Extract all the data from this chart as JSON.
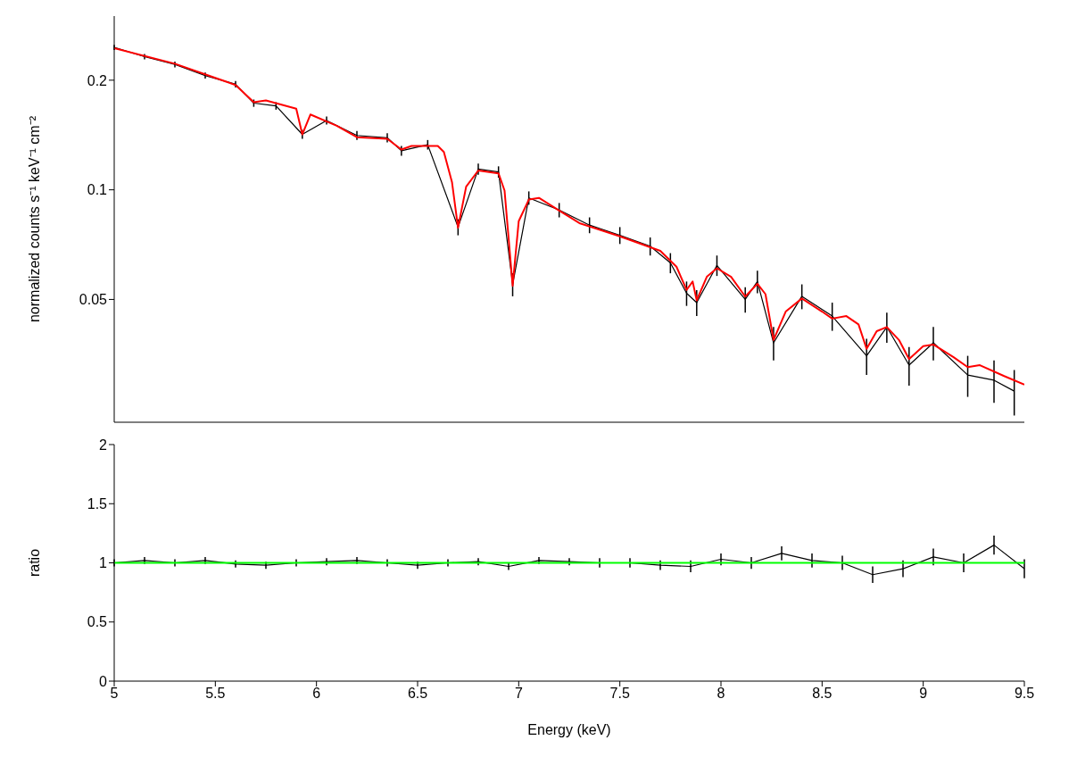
{
  "chart_data": [
    {
      "type": "line",
      "ylabel": "normalized counts s⁻¹ keV⁻¹ cm⁻²",
      "log": "y",
      "tick_labels": "y",
      "xlim": [
        5,
        9.5
      ],
      "xticks": [
        5,
        5.5,
        6,
        6.5,
        7,
        7.5,
        8,
        8.5,
        9,
        9.5
      ],
      "ylim": [
        0.023,
        0.3
      ],
      "yticks": [
        0.05,
        0.1,
        0.2
      ],
      "series": [
        {
          "color": "#000000",
          "x": [
            5.0,
            5.15,
            5.3,
            5.45,
            5.6,
            5.69,
            5.8,
            5.93,
            6.05,
            6.2,
            6.35,
            6.42,
            6.55,
            6.7,
            6.8,
            6.9,
            6.97,
            7.05,
            7.2,
            7.35,
            7.5,
            7.65,
            7.75,
            7.83,
            7.88,
            7.98,
            8.12,
            8.18,
            8.26,
            8.4,
            8.55,
            8.72,
            8.82,
            8.93,
            9.05,
            9.22,
            9.35,
            9.45
          ],
          "values": [
            0.246,
            0.232,
            0.221,
            0.206,
            0.195,
            0.173,
            0.17,
            0.142,
            0.155,
            0.141,
            0.139,
            0.128,
            0.133,
            0.079,
            0.114,
            0.112,
            0.055,
            0.095,
            0.088,
            0.08,
            0.075,
            0.07,
            0.063,
            0.052,
            0.049,
            0.062,
            0.05,
            0.056,
            0.038,
            0.051,
            0.045,
            0.035,
            0.042,
            0.033,
            0.038,
            0.031,
            0.03,
            0.028
          ],
          "errors": [
            0.004,
            0.004,
            0.004,
            0.004,
            0.004,
            0.004,
            0.004,
            0.004,
            0.004,
            0.004,
            0.004,
            0.004,
            0.004,
            0.004,
            0.004,
            0.004,
            0.004,
            0.004,
            0.004,
            0.004,
            0.004,
            0.004,
            0.004,
            0.004,
            0.004,
            0.004,
            0.004,
            0.004,
            0.004,
            0.004,
            0.004,
            0.004,
            0.004,
            0.004,
            0.004,
            0.004,
            0.004,
            0.004
          ]
        },
        {
          "color": "#ff0000",
          "x": [
            5.0,
            5.3,
            5.6,
            5.69,
            5.75,
            5.9,
            5.93,
            5.97,
            6.1,
            6.2,
            6.35,
            6.42,
            6.47,
            6.6,
            6.63,
            6.67,
            6.7,
            6.74,
            6.8,
            6.9,
            6.93,
            6.97,
            7.0,
            7.05,
            7.1,
            7.2,
            7.3,
            7.5,
            7.7,
            7.78,
            7.83,
            7.86,
            7.88,
            7.93,
            7.98,
            8.05,
            8.12,
            8.18,
            8.22,
            8.26,
            8.32,
            8.4,
            8.5,
            8.55,
            8.62,
            8.68,
            8.72,
            8.77,
            8.82,
            8.88,
            8.93,
            9.0,
            9.05,
            9.15,
            9.22,
            9.28,
            9.4,
            9.5
          ],
          "values": [
            0.245,
            0.222,
            0.194,
            0.174,
            0.176,
            0.167,
            0.142,
            0.161,
            0.15,
            0.1395,
            0.138,
            0.129,
            0.132,
            0.132,
            0.127,
            0.105,
            0.0787,
            0.102,
            0.113,
            0.111,
            0.0995,
            0.0545,
            0.082,
            0.094,
            0.095,
            0.0877,
            0.081,
            0.0745,
            0.068,
            0.0615,
            0.0531,
            0.056,
            0.0497,
            0.0577,
            0.0609,
            0.0577,
            0.0509,
            0.0552,
            0.0517,
            0.0387,
            0.0463,
            0.0503,
            0.0463,
            0.0443,
            0.045,
            0.0427,
            0.0366,
            0.0409,
            0.042,
            0.0387,
            0.0343,
            0.0372,
            0.0376,
            0.0347,
            0.0326,
            0.033,
            0.0308,
            0.0292
          ]
        }
      ]
    },
    {
      "type": "line",
      "ylabel": "ratio",
      "xlabel": "Energy (keV)",
      "xlim": [
        5,
        9.5
      ],
      "xticks": [
        5,
        5.5,
        6,
        6.5,
        7,
        7.5,
        8,
        8.5,
        9,
        9.5
      ],
      "ylim": [
        0,
        2
      ],
      "yticks": [
        0,
        0.5,
        1,
        1.5,
        2
      ],
      "series": [
        {
          "color": "#000000",
          "x": [
            5.0,
            5.15,
            5.3,
            5.45,
            5.6,
            5.75,
            5.9,
            6.05,
            6.2,
            6.35,
            6.5,
            6.65,
            6.8,
            6.95,
            7.1,
            7.25,
            7.4,
            7.55,
            7.7,
            7.85,
            8.0,
            8.15,
            8.3,
            8.45,
            8.6,
            8.75,
            8.9,
            9.05,
            9.2,
            9.35,
            9.5
          ],
          "values": [
            1.0,
            1.02,
            1.0,
            1.02,
            0.99,
            0.98,
            1.0,
            1.01,
            1.02,
            1.0,
            0.98,
            1.0,
            1.01,
            0.97,
            1.02,
            1.01,
            1.0,
            1.0,
            0.98,
            0.97,
            1.03,
            1.0,
            1.08,
            1.02,
            1.0,
            0.9,
            0.95,
            1.05,
            1.0,
            1.15,
            0.95
          ],
          "errors": [
            0.03,
            0.03,
            0.03,
            0.03,
            0.03,
            0.03,
            0.03,
            0.03,
            0.03,
            0.03,
            0.03,
            0.03,
            0.03,
            0.03,
            0.03,
            0.03,
            0.04,
            0.04,
            0.04,
            0.05,
            0.05,
            0.05,
            0.06,
            0.06,
            0.06,
            0.07,
            0.07,
            0.07,
            0.08,
            0.08,
            0.08
          ]
        },
        {
          "color": "#00ff00",
          "x": [
            5,
            9.5
          ],
          "values": [
            1,
            1
          ]
        }
      ]
    }
  ]
}
